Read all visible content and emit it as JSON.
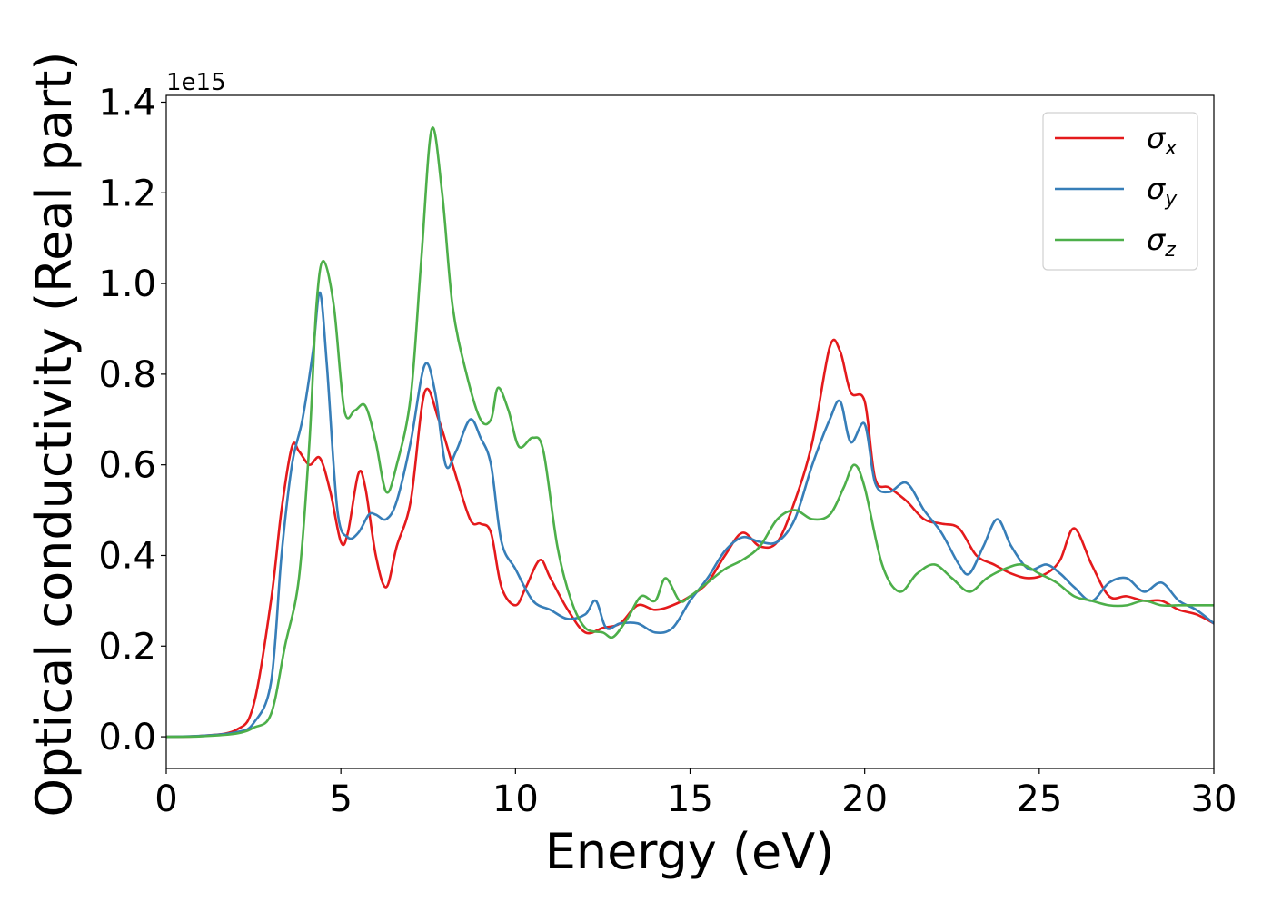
{
  "chart_data": {
    "type": "line",
    "title": "",
    "xlabel": "Energy (eV)",
    "ylabel": "Optical conductivity (Real part)",
    "y_offset_text": "1e15",
    "xlim": [
      0,
      30
    ],
    "ylim": [
      -0.07,
      1.415
    ],
    "xticks": [
      0,
      5,
      10,
      15,
      20,
      25,
      30
    ],
    "yticks": [
      0.0,
      0.2,
      0.4,
      0.6,
      0.8,
      1.0,
      1.2,
      1.4
    ],
    "xtick_labels": [
      "0",
      "5",
      "10",
      "15",
      "20",
      "25",
      "30"
    ],
    "ytick_labels": [
      "0.0",
      "0.2",
      "0.4",
      "0.6",
      "0.8",
      "1.0",
      "1.2",
      "1.4"
    ],
    "grid": false,
    "legend_position": "top-right",
    "series": [
      {
        "name": "σx",
        "base": "σ",
        "sub": "x",
        "color": "#e41a1c",
        "x": [
          0,
          1,
          2,
          2.5,
          3.0,
          3.3,
          3.6,
          3.8,
          4.1,
          4.4,
          4.7,
          5.0,
          5.2,
          5.5,
          5.7,
          6.0,
          6.3,
          6.6,
          7.0,
          7.4,
          7.8,
          8.2,
          8.7,
          9.0,
          9.3,
          9.6,
          10.0,
          10.3,
          10.7,
          11.0,
          11.5,
          12.0,
          12.5,
          13.0,
          13.5,
          14.0,
          14.5,
          15.0,
          15.5,
          16.0,
          16.5,
          17.0,
          17.5,
          18.0,
          18.5,
          19.0,
          19.3,
          19.6,
          20.0,
          20.3,
          20.7,
          21.2,
          21.7,
          22.2,
          22.7,
          23.2,
          23.7,
          24.2,
          24.7,
          25.2,
          25.6,
          26.0,
          26.5,
          27.0,
          27.5,
          28.0,
          28.5,
          29.0,
          29.5,
          30.0
        ],
        "y": [
          0,
          0.002,
          0.015,
          0.07,
          0.3,
          0.5,
          0.64,
          0.63,
          0.6,
          0.615,
          0.54,
          0.43,
          0.45,
          0.58,
          0.55,
          0.4,
          0.33,
          0.42,
          0.52,
          0.76,
          0.7,
          0.6,
          0.48,
          0.47,
          0.45,
          0.33,
          0.29,
          0.33,
          0.39,
          0.35,
          0.28,
          0.23,
          0.24,
          0.25,
          0.29,
          0.28,
          0.29,
          0.31,
          0.34,
          0.4,
          0.45,
          0.42,
          0.43,
          0.52,
          0.65,
          0.86,
          0.85,
          0.76,
          0.74,
          0.57,
          0.55,
          0.52,
          0.48,
          0.47,
          0.46,
          0.4,
          0.38,
          0.36,
          0.35,
          0.36,
          0.39,
          0.46,
          0.38,
          0.31,
          0.31,
          0.3,
          0.3,
          0.28,
          0.27,
          0.25
        ]
      },
      {
        "name": "σy",
        "base": "σ",
        "sub": "y",
        "color": "#377eb8",
        "x": [
          0,
          1,
          2,
          2.5,
          3.0,
          3.3,
          3.6,
          3.9,
          4.2,
          4.4,
          4.6,
          4.9,
          5.2,
          5.5,
          5.8,
          6.0,
          6.3,
          6.6,
          7.0,
          7.4,
          7.7,
          8.0,
          8.3,
          8.7,
          9.0,
          9.3,
          9.6,
          10.0,
          10.5,
          11.0,
          11.5,
          12.0,
          12.3,
          12.6,
          13.0,
          13.5,
          14.0,
          14.5,
          15.0,
          15.5,
          16.0,
          16.5,
          17.0,
          17.5,
          18.0,
          18.5,
          19.0,
          19.3,
          19.6,
          20.0,
          20.3,
          20.7,
          21.2,
          21.7,
          22.2,
          22.7,
          23.0,
          23.4,
          23.8,
          24.2,
          24.7,
          25.2,
          25.6,
          26.0,
          26.5,
          27.0,
          27.5,
          28.0,
          28.5,
          29.0,
          29.5,
          30.0
        ],
        "y": [
          0,
          0.002,
          0.01,
          0.03,
          0.12,
          0.4,
          0.6,
          0.7,
          0.85,
          0.98,
          0.82,
          0.5,
          0.44,
          0.45,
          0.49,
          0.49,
          0.48,
          0.52,
          0.65,
          0.82,
          0.76,
          0.6,
          0.63,
          0.7,
          0.66,
          0.6,
          0.43,
          0.37,
          0.3,
          0.28,
          0.26,
          0.27,
          0.3,
          0.24,
          0.25,
          0.25,
          0.23,
          0.24,
          0.3,
          0.35,
          0.41,
          0.44,
          0.43,
          0.43,
          0.48,
          0.6,
          0.7,
          0.74,
          0.65,
          0.69,
          0.56,
          0.54,
          0.56,
          0.5,
          0.45,
          0.38,
          0.36,
          0.42,
          0.48,
          0.42,
          0.37,
          0.38,
          0.36,
          0.33,
          0.3,
          0.34,
          0.35,
          0.32,
          0.34,
          0.3,
          0.28,
          0.25
        ]
      },
      {
        "name": "σz",
        "base": "σ",
        "sub": "z",
        "color": "#4daf4a",
        "x": [
          0,
          1,
          2,
          2.5,
          3.0,
          3.4,
          3.8,
          4.1,
          4.3,
          4.5,
          4.8,
          5.1,
          5.4,
          5.7,
          6.0,
          6.3,
          6.6,
          7.0,
          7.3,
          7.6,
          7.9,
          8.2,
          8.6,
          9.0,
          9.3,
          9.5,
          9.8,
          10.1,
          10.5,
          10.8,
          11.2,
          11.6,
          12.0,
          12.5,
          12.8,
          13.2,
          13.6,
          14.0,
          14.3,
          14.7,
          15.0,
          15.5,
          16.0,
          16.5,
          17.0,
          17.5,
          18.0,
          18.5,
          19.0,
          19.4,
          19.7,
          20.0,
          20.5,
          21.0,
          21.5,
          22.0,
          22.5,
          23.0,
          23.5,
          24.0,
          24.5,
          25.0,
          25.5,
          26.0,
          26.5,
          27.0,
          27.5,
          28.0,
          28.5,
          29.0,
          29.5,
          30.0
        ],
        "y": [
          0,
          0.001,
          0.007,
          0.02,
          0.05,
          0.2,
          0.35,
          0.65,
          0.95,
          1.05,
          0.95,
          0.72,
          0.72,
          0.73,
          0.65,
          0.54,
          0.6,
          0.75,
          1.05,
          1.34,
          1.2,
          0.95,
          0.8,
          0.7,
          0.7,
          0.77,
          0.72,
          0.64,
          0.66,
          0.63,
          0.42,
          0.3,
          0.24,
          0.23,
          0.22,
          0.26,
          0.31,
          0.3,
          0.35,
          0.3,
          0.31,
          0.34,
          0.37,
          0.39,
          0.42,
          0.48,
          0.5,
          0.48,
          0.49,
          0.55,
          0.6,
          0.55,
          0.38,
          0.32,
          0.36,
          0.38,
          0.35,
          0.32,
          0.35,
          0.37,
          0.38,
          0.36,
          0.34,
          0.31,
          0.3,
          0.29,
          0.29,
          0.3,
          0.29,
          0.29,
          0.29,
          0.29
        ]
      }
    ]
  }
}
